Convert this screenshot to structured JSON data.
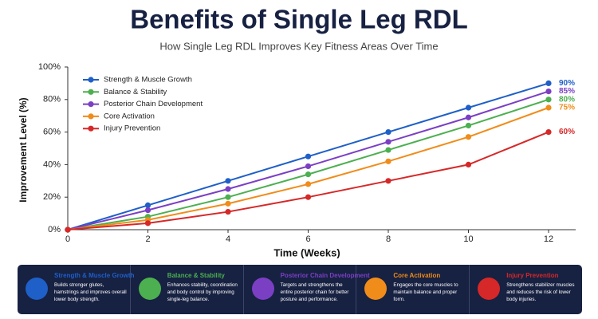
{
  "chart_data": {
    "type": "line",
    "title": "Benefits of Single Leg RDL",
    "subtitle": "How Single Leg RDL Improves Key Fitness Areas Over Time",
    "xlabel": "Time (Weeks)",
    "ylabel": "Improvement Level (%)",
    "x": [
      0,
      2,
      4,
      6,
      8,
      10,
      12
    ],
    "xlim": [
      0,
      12
    ],
    "xticks": [
      0,
      2,
      4,
      6,
      8,
      10,
      12
    ],
    "ylim": [
      0,
      100
    ],
    "yticks": [
      {
        "value": 0,
        "label": "0%"
      },
      {
        "value": 20,
        "label": "20%"
      },
      {
        "value": 40,
        "label": "40%"
      },
      {
        "value": 60,
        "label": "60%"
      },
      {
        "value": 80,
        "label": "80%"
      },
      {
        "value": 100,
        "label": "100%"
      }
    ],
    "grid": false,
    "legend": "upper left",
    "series": [
      {
        "name": "Strength & Muscle Growth",
        "color": "#1f5fc8",
        "values": [
          0,
          15,
          30,
          45,
          60,
          75,
          90
        ],
        "value_labels": [
          null,
          null,
          null,
          null,
          null,
          null,
          "90%"
        ]
      },
      {
        "name": "Balance & Stability",
        "color": "#4caf50",
        "values": [
          0,
          8,
          20,
          34,
          49,
          64,
          80
        ],
        "value_labels": [
          null,
          null,
          null,
          null,
          null,
          null,
          "80%"
        ]
      },
      {
        "name": "Posterior Chain Development",
        "color": "#7b3fc4",
        "values": [
          0,
          12,
          25,
          39,
          54,
          69,
          85
        ],
        "value_labels": [
          null,
          null,
          null,
          null,
          null,
          null,
          "85%"
        ]
      },
      {
        "name": "Core Activation",
        "color": "#f08c1a",
        "values": [
          0,
          6,
          16,
          28,
          42,
          57,
          75
        ],
        "value_labels": [
          null,
          null,
          null,
          null,
          null,
          null,
          "75%"
        ]
      },
      {
        "name": "Injury Prevention",
        "color": "#d62828",
        "values": [
          0,
          4,
          11,
          20,
          30,
          40,
          60
        ],
        "value_labels": [
          null,
          null,
          null,
          null,
          null,
          null,
          "60%"
        ]
      }
    ]
  },
  "footer": {
    "cards": [
      {
        "title": "Strength & Muscle Growth",
        "text": "Builds stronger glutes, hamstrings and improves overall lower body strength."
      },
      {
        "title": "Balance & Stability",
        "text": "Enhances stability, coordination and body control by improving single-leg balance."
      },
      {
        "title": "Posterior Chain Development",
        "text": "Targets and strengthens the entire posterior chain for better posture and performance."
      },
      {
        "title": "Core Activation",
        "text": "Engages the core muscles to maintain balance and proper form."
      },
      {
        "title": "Injury Prevention",
        "text": "Strengthens stabilizer muscles and reduces the risk of lower body injuries."
      }
    ]
  }
}
